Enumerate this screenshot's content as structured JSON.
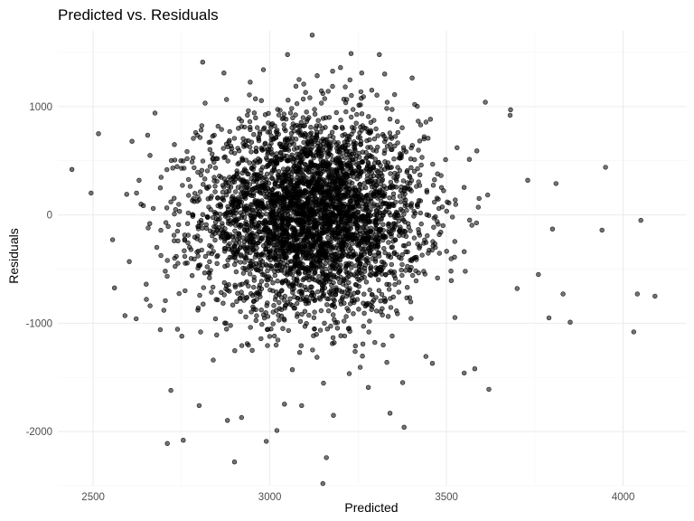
{
  "chart_data": {
    "type": "scatter",
    "title": "Predicted vs. Residuals",
    "xlabel": "Predicted",
    "ylabel": "Residuals",
    "xlim": [
      2400,
      4180
    ],
    "ylim": [
      -2500,
      1700
    ],
    "x_ticks": [
      2500,
      3000,
      3500,
      4000
    ],
    "y_ticks": [
      -2000,
      -1000,
      0,
      1000
    ],
    "x_tick_labels": [
      "2500",
      "3000",
      "3500",
      "4000"
    ],
    "y_tick_labels": [
      "-2000",
      "-1000",
      "0",
      "1000"
    ],
    "grid": true,
    "legend": "none",
    "point_color": "#000000",
    "point_alpha": 0.55,
    "points": [
      [
        2440,
        420
      ],
      [
        2515,
        750
      ],
      [
        2555,
        -230
      ],
      [
        2590,
        -930
      ],
      [
        2595,
        190
      ],
      [
        2610,
        680
      ],
      [
        2630,
        320
      ],
      [
        2650,
        -640
      ],
      [
        2675,
        940
      ],
      [
        2690,
        -1060
      ],
      [
        2720,
        -1620
      ],
      [
        2755,
        -2080
      ],
      [
        2710,
        -2110
      ],
      [
        2800,
        -1760
      ],
      [
        2810,
        1410
      ],
      [
        2840,
        -1340
      ],
      [
        2870,
        1310
      ],
      [
        2900,
        -2280
      ],
      [
        2920,
        -1870
      ],
      [
        2950,
        -1250
      ],
      [
        2990,
        -2090
      ],
      [
        3020,
        -1990
      ],
      [
        3050,
        1480
      ],
      [
        3090,
        -1760
      ],
      [
        3120,
        1660
      ],
      [
        3150,
        -2480
      ],
      [
        3160,
        -2240
      ],
      [
        3180,
        -1850
      ],
      [
        3200,
        1360
      ],
      [
        3230,
        1490
      ],
      [
        3260,
        1310
      ],
      [
        3310,
        1480
      ],
      [
        3340,
        -1830
      ],
      [
        3380,
        -1960
      ],
      [
        3410,
        1020
      ],
      [
        3460,
        -1370
      ],
      [
        3530,
        620
      ],
      [
        3550,
        -1460
      ],
      [
        3580,
        -1420
      ],
      [
        3610,
        1040
      ],
      [
        3620,
        -1610
      ],
      [
        3680,
        920
      ],
      [
        3700,
        -680
      ],
      [
        3730,
        320
      ],
      [
        3760,
        -550
      ],
      [
        3790,
        -950
      ],
      [
        3800,
        -130
      ],
      [
        3810,
        290
      ],
      [
        3830,
        -730
      ],
      [
        3850,
        -990
      ],
      [
        3940,
        -140
      ],
      [
        3950,
        440
      ],
      [
        4030,
        -1080
      ],
      [
        4040,
        -730
      ],
      [
        4050,
        -50
      ],
      [
        4090,
        -750
      ],
      [
        2660,
        -80
      ],
      [
        2670,
        60
      ],
      [
        2680,
        -300
      ],
      [
        2690,
        250
      ],
      [
        2700,
        -880
      ],
      [
        2710,
        -420
      ],
      [
        2720,
        120
      ],
      [
        2730,
        650
      ],
      [
        2740,
        -240
      ],
      [
        2750,
        430
      ],
      [
        2760,
        -700
      ],
      [
        2770,
        180
      ],
      [
        2780,
        -560
      ],
      [
        2790,
        760
      ]
    ],
    "n_points": 3900,
    "center": [
      3120,
      -10
    ],
    "spread": [
      155,
      450
    ]
  }
}
